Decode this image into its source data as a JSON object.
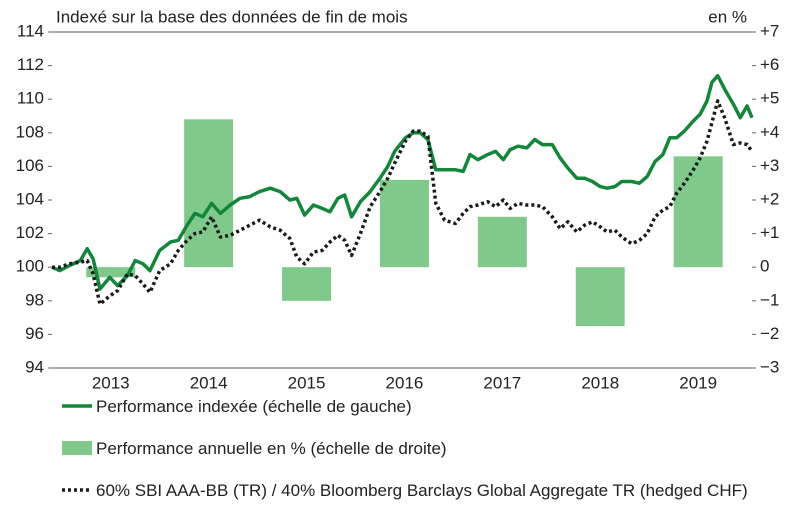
{
  "chart_data": {
    "type": "bar-line",
    "title": "Indexé sur la base des données de fin de mois",
    "y2_unit_label": "en %",
    "categories": [
      "2013",
      "2014",
      "2015",
      "2016",
      "2017",
      "2018",
      "2019"
    ],
    "xlim": [
      2012.9,
      2020.05
    ],
    "ylim": [
      94,
      114
    ],
    "yticks": [
      94,
      96,
      98,
      100,
      102,
      104,
      106,
      108,
      110,
      112,
      114
    ],
    "y2lim": [
      -3,
      7
    ],
    "y2ticks": [
      {
        "value": -3,
        "label": "−3"
      },
      {
        "value": -2,
        "label": "−2"
      },
      {
        "value": -1,
        "label": "−1"
      },
      0,
      {
        "value": 1,
        "label": "+1"
      },
      {
        "value": 2,
        "label": "+2"
      },
      {
        "value": 3,
        "label": "+3"
      },
      {
        "value": 4,
        "label": "+4"
      },
      {
        "value": 5,
        "label": "+5"
      },
      {
        "value": 6,
        "label": "+6"
      },
      {
        "value": 7,
        "label": "+7"
      }
    ],
    "x": [
      2012.9,
      2012.98,
      2013.08,
      2013.19,
      2013.26,
      2013.32,
      2013.39,
      2013.49,
      2013.57,
      2013.67,
      2013.75,
      2013.83,
      2013.9,
      2014.0,
      2014.11,
      2014.19,
      2014.28,
      2014.36,
      2014.44,
      2014.53,
      2014.62,
      2014.72,
      2014.82,
      2014.92,
      2015.02,
      2015.13,
      2015.23,
      2015.33,
      2015.4,
      2015.48,
      2015.57,
      2015.66,
      2015.74,
      2015.82,
      2015.89,
      2015.96,
      2016.05,
      2016.15,
      2016.25,
      2016.33,
      2016.4,
      2016.51,
      2016.59,
      2016.66,
      2016.74,
      2016.82,
      2016.91,
      2017.02,
      2017.1,
      2017.17,
      2017.25,
      2017.35,
      2017.43,
      2017.51,
      2017.58,
      2017.66,
      2017.75,
      2017.83,
      2017.91,
      2018.01,
      2018.09,
      2018.17,
      2018.26,
      2018.34,
      2018.42,
      2018.5,
      2018.57,
      2018.65,
      2018.72,
      2018.82,
      2018.9,
      2018.98,
      2019.06,
      2019.14,
      2019.21,
      2019.28,
      2019.36,
      2019.45,
      2019.52,
      2019.59,
      2019.64,
      2019.7,
      2019.77,
      2019.86,
      2019.93,
      2020.0,
      2020.05
    ],
    "series": [
      {
        "name": "Performance indexée (échelle de gauche)",
        "color": "#12873a",
        "style": "solid",
        "values": [
          100.0,
          99.8,
          100.1,
          100.4,
          101.1,
          100.5,
          98.7,
          99.4,
          98.9,
          99.5,
          100.4,
          100.2,
          99.8,
          101.0,
          101.5,
          101.6,
          102.5,
          103.2,
          103.0,
          103.8,
          103.2,
          103.7,
          104.1,
          104.2,
          104.5,
          104.7,
          104.5,
          104.0,
          104.1,
          103.1,
          103.7,
          103.5,
          103.3,
          104.1,
          104.3,
          103.0,
          103.9,
          104.5,
          105.3,
          106.0,
          106.9,
          107.7,
          108.0,
          108.0,
          107.6,
          105.8,
          105.8,
          105.8,
          105.7,
          106.7,
          106.4,
          106.7,
          106.9,
          106.4,
          107.0,
          107.2,
          107.1,
          107.6,
          107.3,
          107.3,
          106.5,
          105.9,
          105.3,
          105.3,
          105.1,
          104.8,
          104.7,
          104.8,
          105.1,
          105.1,
          105.0,
          105.4,
          106.3,
          106.7,
          107.7,
          107.7,
          108.1,
          108.7,
          109.1,
          109.9,
          111.0,
          111.4,
          110.6,
          109.7,
          108.9,
          109.6,
          108.9
        ]
      },
      {
        "name": "Performance annuelle en % (échelle de droite)",
        "color": "#7fca8b",
        "axis": "y2",
        "kind": "bar",
        "values": [
          -0.3,
          4.4,
          -1.0,
          2.6,
          1.5,
          -1.75,
          3.3
        ]
      },
      {
        "name": "60% SBI AAA-BB (TR) / 40% Bloomberg Barclays Global Aggregate TR (hedged CHF)",
        "color": "#1a1a1a",
        "style": "dotted",
        "values": [
          100.0,
          100.0,
          100.2,
          100.3,
          100.4,
          99.6,
          97.8,
          98.3,
          98.6,
          99.6,
          99.5,
          99.0,
          98.5,
          99.8,
          100.2,
          101.0,
          101.6,
          102.0,
          102.1,
          103.0,
          101.8,
          101.9,
          102.2,
          102.5,
          102.8,
          102.4,
          102.2,
          101.7,
          100.6,
          100.2,
          100.9,
          101.0,
          101.5,
          101.9,
          101.6,
          100.7,
          102.0,
          103.6,
          104.5,
          105.3,
          106.2,
          107.5,
          108.1,
          108.1,
          107.8,
          103.8,
          102.8,
          102.6,
          103.2,
          103.6,
          103.7,
          103.9,
          103.6,
          104.0,
          103.5,
          103.8,
          103.7,
          103.7,
          103.6,
          103.0,
          102.3,
          102.7,
          102.1,
          102.5,
          102.7,
          102.4,
          102.1,
          102.2,
          101.8,
          101.4,
          101.6,
          102.0,
          103.0,
          103.4,
          103.6,
          104.4,
          105.0,
          105.8,
          106.5,
          107.5,
          108.6,
          109.9,
          108.9,
          107.3,
          107.4,
          107.3,
          106.9
        ]
      }
    ]
  }
}
